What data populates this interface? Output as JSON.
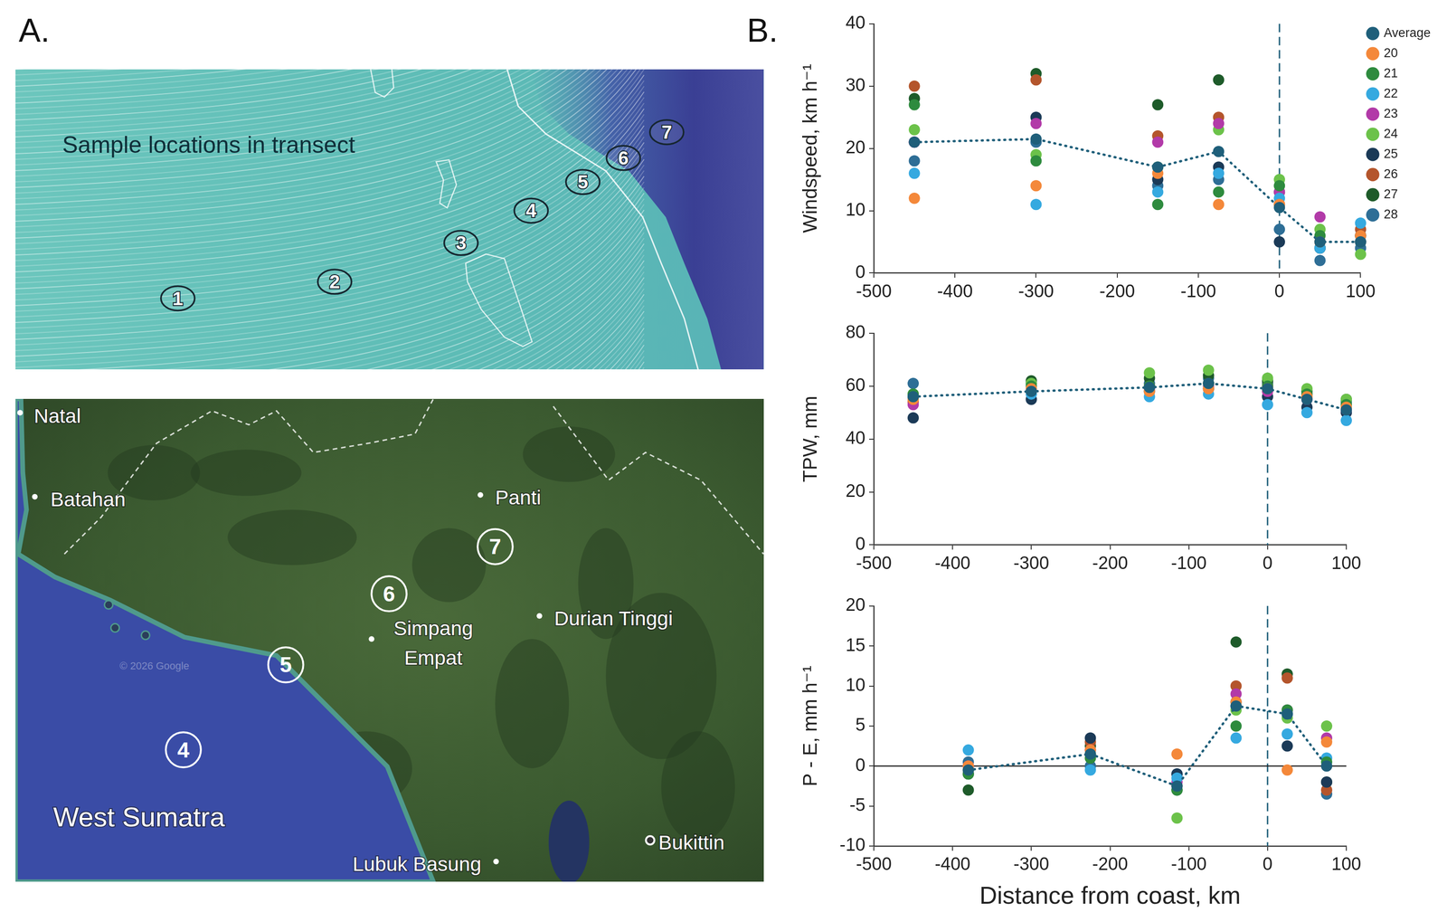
{
  "panel_a": {
    "letter": "A.",
    "wind_map": {
      "title": "Sample locations in transect",
      "markers": [
        1,
        2,
        3,
        4,
        5,
        6,
        7
      ]
    },
    "terrain_map": {
      "places": [
        "Natal",
        "Batahan",
        "Panti",
        "Simpang Empat",
        "Durian Tinggi",
        "Lubuk Basung",
        "Bukittin"
      ],
      "region": "West Sumatra",
      "markers": [
        4,
        5,
        6,
        7
      ],
      "credit": "© 2026 Google"
    }
  },
  "panel_b": {
    "letter": "B."
  },
  "chart_data": [
    {
      "type": "scatter",
      "y_label": "Windspeed, km h⁻¹",
      "x": [
        -450,
        -300,
        -150,
        -75,
        0,
        50,
        100
      ],
      "xlim": [
        -500,
        100
      ],
      "xticks": [
        -500,
        -400,
        -300,
        -200,
        -100,
        0,
        100
      ],
      "ylim": [
        0,
        40
      ],
      "yticks": [
        0,
        10,
        20,
        30,
        40
      ],
      "grid": false,
      "legend": "right",
      "vline": 0,
      "series": [
        {
          "name": "Average",
          "color": "#1f5f7a",
          "marker": "circle",
          "line_style": "dotted",
          "values": [
            21,
            21.5,
            17,
            19.5,
            10.5,
            5,
            5
          ]
        },
        {
          "name": "20",
          "color": "#f4883a",
          "marker": "circle",
          "values": [
            12,
            14,
            16,
            11,
            11,
            5,
            6
          ]
        },
        {
          "name": "21",
          "color": "#2e8b3e",
          "marker": "circle",
          "values": [
            27,
            18,
            11,
            13,
            14,
            6,
            5
          ]
        },
        {
          "name": "22",
          "color": "#35a9e0",
          "marker": "circle",
          "values": [
            16,
            11,
            13,
            16,
            12,
            4,
            8
          ]
        },
        {
          "name": "23",
          "color": "#b23aa8",
          "marker": "circle",
          "values": [
            21,
            24,
            21,
            24,
            13,
            9,
            5
          ]
        },
        {
          "name": "24",
          "color": "#6cc24a",
          "marker": "circle",
          "values": [
            23,
            19,
            17,
            23,
            15,
            7,
            3
          ]
        },
        {
          "name": "25",
          "color": "#1b3a57",
          "marker": "circle",
          "values": [
            21,
            25,
            15,
            17,
            5,
            4,
            6
          ]
        },
        {
          "name": "26",
          "color": "#b4552c",
          "marker": "circle",
          "values": [
            30,
            31,
            22,
            25,
            11,
            5,
            7
          ]
        },
        {
          "name": "27",
          "color": "#1e5b2a",
          "marker": "circle",
          "values": [
            28,
            32,
            27,
            31,
            13,
            4,
            6
          ]
        },
        {
          "name": "28",
          "color": "#2e6e96",
          "marker": "circle",
          "values": [
            18,
            21,
            14,
            15,
            7,
            2,
            4
          ]
        }
      ]
    },
    {
      "type": "scatter",
      "y_label": "TPW, mm",
      "x": [
        -450,
        -300,
        -150,
        -75,
        0,
        50,
        100
      ],
      "xlim": [
        -500,
        100
      ],
      "xticks": [
        -500,
        -400,
        -300,
        -200,
        -100,
        0,
        100
      ],
      "ylim": [
        0,
        80
      ],
      "yticks": [
        0,
        20,
        40,
        60,
        80
      ],
      "grid": false,
      "vline": 0,
      "series": [
        {
          "name": "Average",
          "color": "#1f5f7a",
          "marker": "circle",
          "line_style": "dotted",
          "values": [
            56,
            58,
            59.5,
            61,
            59,
            55,
            51
          ]
        },
        {
          "name": "20",
          "color": "#f4883a",
          "marker": "circle",
          "values": [
            55,
            59,
            58,
            59,
            59,
            56,
            52
          ]
        },
        {
          "name": "21",
          "color": "#2e8b3e",
          "marker": "circle",
          "values": [
            57,
            60,
            60,
            61,
            60,
            57,
            53
          ]
        },
        {
          "name": "22",
          "color": "#35a9e0",
          "marker": "circle",
          "values": [
            56,
            57,
            56,
            57,
            53,
            50,
            47
          ]
        },
        {
          "name": "23",
          "color": "#b23aa8",
          "marker": "circle",
          "values": [
            53,
            58,
            59,
            60,
            58,
            55,
            51
          ]
        },
        {
          "name": "24",
          "color": "#6cc24a",
          "marker": "circle",
          "values": [
            57,
            61,
            65,
            66,
            63,
            59,
            55
          ]
        },
        {
          "name": "25",
          "color": "#1b3a57",
          "marker": "circle",
          "values": [
            48,
            55,
            58,
            59,
            56,
            52,
            50
          ]
        },
        {
          "name": "26",
          "color": "#b4552c",
          "marker": "circle",
          "values": [
            54,
            58,
            60,
            61,
            60,
            56,
            52
          ]
        },
        {
          "name": "27",
          "color": "#1e5b2a",
          "marker": "circle",
          "values": [
            56,
            62,
            63,
            64,
            62,
            58,
            55
          ]
        },
        {
          "name": "28",
          "color": "#2e6e96",
          "marker": "circle",
          "values": [
            61,
            61,
            61,
            63,
            61,
            57,
            54
          ]
        }
      ]
    },
    {
      "type": "scatter",
      "y_label": "P - E, mm h⁻¹",
      "x_label": "Distance from coast, km",
      "x": [
        -380,
        -225,
        -115,
        -40,
        25,
        75
      ],
      "xlim": [
        -500,
        100
      ],
      "xticks": [
        -500,
        -400,
        -300,
        -200,
        -100,
        0,
        100
      ],
      "ylim": [
        -10,
        20
      ],
      "yticks": [
        -10,
        -5,
        0,
        5,
        10,
        15,
        20
      ],
      "grid": false,
      "vline": 0,
      "hline": 0,
      "series": [
        {
          "name": "Average",
          "color": "#1f5f7a",
          "marker": "circle",
          "line_style": "dotted",
          "values": [
            -0.5,
            1.5,
            -2.5,
            7.5,
            6.5,
            0
          ]
        },
        {
          "name": "20",
          "color": "#f4883a",
          "marker": "circle",
          "values": [
            0,
            2,
            1.5,
            8,
            -0.5,
            3
          ]
        },
        {
          "name": "21",
          "color": "#2e8b3e",
          "marker": "circle",
          "values": [
            -1,
            1,
            -3,
            5,
            7,
            0.5
          ]
        },
        {
          "name": "22",
          "color": "#35a9e0",
          "marker": "circle",
          "values": [
            2,
            -0.5,
            -1.5,
            3.5,
            4,
            1
          ]
        },
        {
          "name": "23",
          "color": "#b23aa8",
          "marker": "circle",
          "values": [
            0,
            2,
            -2,
            9,
            7,
            3.5
          ]
        },
        {
          "name": "24",
          "color": "#6cc24a",
          "marker": "circle",
          "values": [
            -0.5,
            1.5,
            -6.5,
            7,
            6,
            5
          ]
        },
        {
          "name": "25",
          "color": "#1b3a57",
          "marker": "circle",
          "values": [
            -1,
            3.5,
            -1,
            8,
            2.5,
            -2
          ]
        },
        {
          "name": "26",
          "color": "#b4552c",
          "marker": "circle",
          "values": [
            -0.5,
            3,
            -2.5,
            10,
            11,
            -3
          ]
        },
        {
          "name": "27",
          "color": "#1e5b2a",
          "marker": "circle",
          "values": [
            -3,
            2.5,
            -3,
            15.5,
            11.5,
            -2
          ]
        },
        {
          "name": "28",
          "color": "#2e6e96",
          "marker": "circle",
          "values": [
            0.5,
            0,
            -1,
            7.5,
            6.5,
            -3.5
          ]
        }
      ]
    }
  ]
}
